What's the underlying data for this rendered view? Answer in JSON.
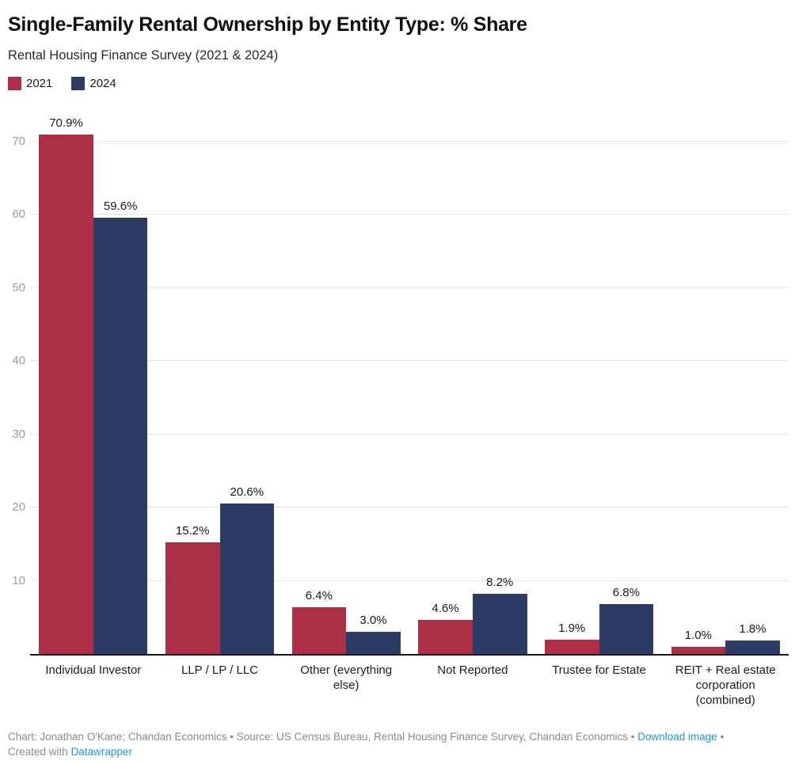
{
  "header": {
    "title": "Single-Family Rental Ownership by Entity Type: % Share",
    "subtitle": "Rental Housing Finance Survey (2021 & 2024)"
  },
  "chart_data": {
    "type": "bar",
    "title": "Single-Family Rental Ownership by Entity Type: % Share",
    "subtitle": "Rental Housing Finance Survey (2021 & 2024)",
    "categories": [
      "Individual Investor",
      "LLP / LP / LLC",
      "Other (everything else)",
      "Not Reported",
      "Trustee for Estate",
      "REIT + Real estate corporation (combined)"
    ],
    "series": [
      {
        "name": "2021",
        "color": "#ad2f46",
        "values": [
          70.9,
          15.2,
          6.4,
          4.6,
          1.9,
          1.0
        ]
      },
      {
        "name": "2024",
        "color": "#2d3c64",
        "values": [
          59.6,
          20.6,
          3.0,
          8.2,
          6.8,
          1.8
        ]
      }
    ],
    "value_suffix": "%",
    "label_decimals": 1,
    "ylim": [
      0,
      74.4
    ],
    "yticks": [
      10,
      20,
      30,
      40,
      50,
      60,
      70
    ],
    "grid": true,
    "legend_position": "top-left",
    "value_labels": "above-bars"
  },
  "colors": {
    "series_2021": "#ad2f46",
    "series_2024": "#2d3c64",
    "gridline": "#e3e3e3",
    "baseline": "#18181b",
    "axis_text": "#9d9d9d",
    "link": "#1e96dc",
    "footer_text": "#8a8a8a"
  },
  "footer": {
    "credit_line": "Chart: Jonathan O'Kane; Chandan Economics • Source: US Census Bureau, Rental Housing Finance Survey, Chandan Economics •",
    "download_label": "Download image",
    "trailing_separator": "•",
    "created_with": "Created with",
    "datawrapper_label": "Datawrapper"
  }
}
